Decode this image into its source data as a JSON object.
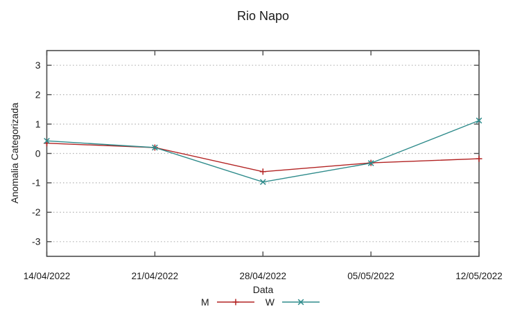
{
  "window": {
    "background": "#ffffff"
  },
  "chart_data": {
    "type": "line",
    "title": "Rio Napo",
    "xlabel": "Data",
    "ylabel": "Anomalia Categorizada",
    "categories": [
      "14/04/2022",
      "21/04/2022",
      "28/04/2022",
      "05/05/2022",
      "12/05/2022"
    ],
    "series": [
      {
        "name": "M",
        "marker": "plus",
        "color": "#b22222",
        "values": [
          0.35,
          0.2,
          -0.62,
          -0.32,
          -0.18
        ]
      },
      {
        "name": "W",
        "marker": "cross",
        "color": "#2e8b8b",
        "values": [
          0.43,
          0.2,
          -0.97,
          -0.33,
          1.12
        ]
      }
    ],
    "ylim": [
      -3.5,
      3.5
    ],
    "yticks": [
      3,
      2,
      1,
      0,
      -1,
      -2,
      -3
    ],
    "grid": true,
    "grid_style": "dotted",
    "legend_position": "bottom-center",
    "axis_color": "#4d4d4d",
    "grid_color": "#b0b0b0",
    "text_color": "#1a1a1a"
  }
}
